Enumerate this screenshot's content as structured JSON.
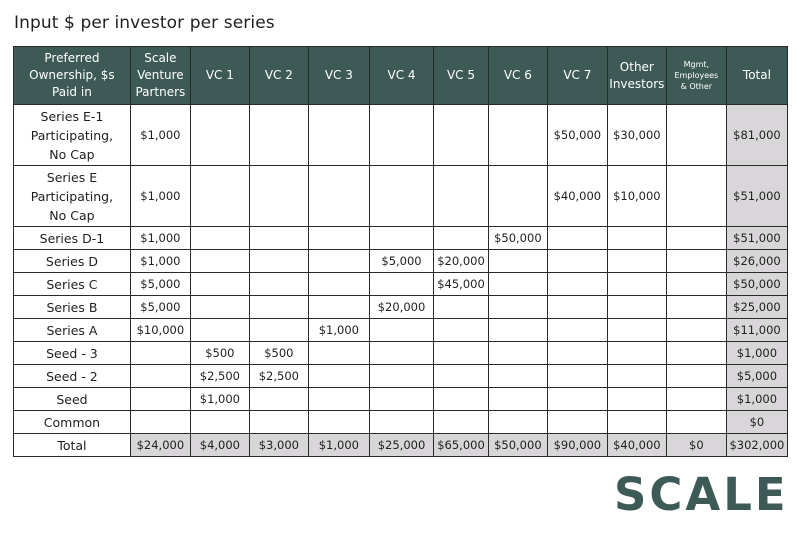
{
  "title": "Input $ per investor per series",
  "logo": "SCALE",
  "columns": [
    "Preferred\nOwnership, $s\nPaid in",
    "Scale\nVenture\nPartners",
    "VC 1",
    "VC 2",
    "VC 3",
    "VC 4",
    "VC 5",
    "VC 6",
    "VC 7",
    "Other\nInvestors",
    "Mgmt,\nEmployees\n& Other",
    "Total"
  ],
  "rows": [
    [
      "Series E-1\nParticipating,\nNo Cap",
      "$1,000",
      "",
      "",
      "",
      "",
      "",
      "",
      "$50,000",
      "$30,000",
      "",
      "$81,000"
    ],
    [
      "Series E\nParticipating,\nNo Cap",
      "$1,000",
      "",
      "",
      "",
      "",
      "",
      "",
      "$40,000",
      "$10,000",
      "",
      "$51,000"
    ],
    [
      "Series D-1",
      "$1,000",
      "",
      "",
      "",
      "",
      "",
      "$50,000",
      "",
      "",
      "",
      "$51,000"
    ],
    [
      "Series D",
      "$1,000",
      "",
      "",
      "",
      "$5,000",
      "$20,000",
      "",
      "",
      "",
      "",
      "$26,000"
    ],
    [
      "Series C",
      "$5,000",
      "",
      "",
      "",
      "",
      "$45,000",
      "",
      "",
      "",
      "",
      "$50,000"
    ],
    [
      "Series B",
      "$5,000",
      "",
      "",
      "",
      "$20,000",
      "",
      "",
      "",
      "",
      "",
      "$25,000"
    ],
    [
      "Series A",
      "$10,000",
      "",
      "",
      "$1,000",
      "",
      "",
      "",
      "",
      "",
      "",
      "$11,000"
    ],
    [
      "Seed - 3",
      "",
      "$500",
      "$500",
      "",
      "",
      "",
      "",
      "",
      "",
      "",
      "$1,000"
    ],
    [
      "Seed - 2",
      "",
      "$2,500",
      "$2,500",
      "",
      "",
      "",
      "",
      "",
      "",
      "",
      "$5,000"
    ],
    [
      "Seed",
      "",
      "$1,000",
      "",
      "",
      "",
      "",
      "",
      "",
      "",
      "",
      "$1,000"
    ],
    [
      "Common",
      "",
      "",
      "",
      "",
      "",
      "",
      "",
      "",
      "",
      "",
      "$0"
    ],
    [
      "Total",
      "$24,000",
      "$4,000",
      "$3,000",
      "$1,000",
      "$25,000",
      "$65,000",
      "$50,000",
      "$90,000",
      "$40,000",
      "$0",
      "$302,000"
    ]
  ]
}
